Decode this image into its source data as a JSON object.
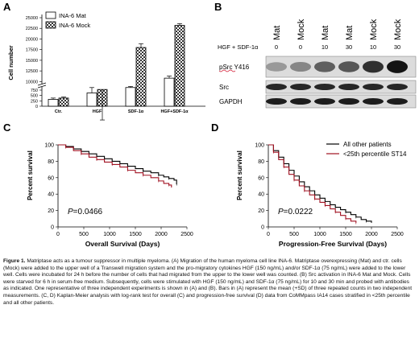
{
  "panels": {
    "A": {
      "letter": "A"
    },
    "B": {
      "letter": "B"
    },
    "C": {
      "letter": "C"
    },
    "D": {
      "letter": "D"
    }
  },
  "chart_data": [
    {
      "id": "A",
      "type": "bar",
      "ylabel": "Cell number",
      "categories": [
        "Ctr.",
        "HGF",
        "SDF-1α",
        "HGF+SDF-1α"
      ],
      "series": [
        {
          "name": "INA-6 Mat",
          "values": [
            320,
            620,
            8600,
            10800
          ],
          "errors": [
            60,
            250,
            250,
            500
          ]
        },
        {
          "name": "INA-6 Mock",
          "values": [
            380,
            780,
            18000,
            23200
          ],
          "errors": [
            50,
            200,
            900,
            400
          ]
        }
      ],
      "y_ticks": [
        "0",
        "250",
        "500",
        "750",
        "10000",
        "12500",
        "15000",
        "17500",
        "20000",
        "22500",
        "25000"
      ],
      "axis_break": [
        900,
        9500
      ],
      "legend_position": "top-left"
    },
    {
      "id": "C",
      "type": "line",
      "xlabel": "Overall Survival (Days)",
      "ylabel": "Percent survival",
      "xlim": [
        0,
        2500
      ],
      "ylim": [
        0,
        100
      ],
      "x_ticks": [
        "0",
        "500",
        "1000",
        "1500",
        "2000",
        "2500"
      ],
      "y_ticks": [
        "0",
        "20",
        "40",
        "60",
        "80",
        "100"
      ],
      "annotation": {
        "p_label": "P",
        "p_value": "=0.0466"
      },
      "series": [
        {
          "name": "All other patients",
          "color": "#000000",
          "x": [
            0,
            150,
            300,
            450,
            600,
            750,
            900,
            1050,
            1200,
            1350,
            1500,
            1650,
            1800,
            1950,
            2050,
            2150,
            2250,
            2300
          ],
          "y": [
            100,
            98,
            95,
            92,
            89,
            86,
            83,
            80,
            77,
            74,
            71,
            68,
            66,
            63,
            61,
            59,
            57,
            52
          ]
        },
        {
          "name": "<25th percentile ST14",
          "color": "#a01020",
          "x": [
            0,
            150,
            300,
            450,
            600,
            750,
            900,
            1050,
            1200,
            1350,
            1500,
            1650,
            1800,
            1950,
            2050,
            2150,
            2200
          ],
          "y": [
            100,
            97,
            93,
            89,
            85,
            82,
            79,
            76,
            73,
            69,
            66,
            63,
            60,
            56,
            53,
            51,
            48
          ]
        }
      ]
    },
    {
      "id": "D",
      "type": "line",
      "xlabel": "Progression-Free Survival (Days)",
      "ylabel": "Percent survival",
      "xlim": [
        0,
        2500
      ],
      "ylim": [
        0,
        100
      ],
      "x_ticks": [
        "0",
        "500",
        "1000",
        "1500",
        "2000",
        "2500"
      ],
      "y_ticks": [
        "0",
        "20",
        "40",
        "60",
        "80",
        "100"
      ],
      "annotation": {
        "p_label": "P",
        "p_value": "=0.0222"
      },
      "legend_position": "top-right",
      "series": [
        {
          "name": "All other patients",
          "color": "#000000",
          "x": [
            0,
            100,
            200,
            300,
            400,
            500,
            600,
            700,
            800,
            900,
            1000,
            1100,
            1200,
            1300,
            1400,
            1500,
            1600,
            1700,
            1800,
            1900,
            2000
          ],
          "y": [
            100,
            93,
            85,
            77,
            69,
            62,
            55,
            49,
            44,
            39,
            35,
            31,
            27,
            24,
            21,
            18,
            15,
            12,
            9,
            7,
            5
          ]
        },
        {
          "name": "<25th percentile ST14",
          "color": "#a01020",
          "x": [
            0,
            100,
            200,
            300,
            400,
            500,
            600,
            700,
            800,
            900,
            1000,
            1100,
            1200,
            1300,
            1400,
            1500,
            1600,
            1700
          ],
          "y": [
            100,
            91,
            82,
            73,
            64,
            57,
            50,
            44,
            39,
            34,
            30,
            26,
            22,
            18,
            14,
            10,
            7,
            5
          ]
        }
      ]
    }
  ],
  "western_blot": {
    "header_label": "HGF + SDF-1α",
    "lanes": [
      {
        "group": "Mat",
        "dose": "0"
      },
      {
        "group": "Mock",
        "dose": "0"
      },
      {
        "group": "Mat",
        "dose": "10"
      },
      {
        "group": "Mat",
        "dose": "30"
      },
      {
        "group": "Mock",
        "dose": "10"
      },
      {
        "group": "Mock",
        "dose": "30"
      }
    ],
    "rows": [
      {
        "label": "pSrc Y416",
        "intensity": [
          0.25,
          0.35,
          0.55,
          0.6,
          0.8,
          0.95
        ]
      },
      {
        "label": "Src",
        "intensity": [
          0.85,
          0.85,
          0.85,
          0.85,
          0.85,
          0.85
        ]
      },
      {
        "label": "GAPDH",
        "intensity": [
          0.9,
          0.9,
          0.9,
          0.9,
          0.9,
          0.9
        ]
      }
    ]
  },
  "caption": {
    "title": "Figure 1.",
    "text": "Matriptase acts as a tumour suppressor in multiple myeloma. (A) Migration of the human myeloma cell line INA-6. Matriptase overexpressing (Mat) and ctr. cells (Mock) were added to the upper well of a Transwell migration system and the pro-migratory cytokines HGF (150 ng/mL) and/or SDF-1α (75 ng/mL) were added to the lower well. Cells were incubated for 24 h before the number of cells that had migrated from the upper to the lower well was counted. (B) Src activation in INA-6 Mat and Mock. Cells were starved for 6 h in serum-free medium. Subsequently, cells were stimulated with HGF (150 ng/mL) and SDF-1α (75 ng/mL) for 10 and 30 min and probed with antibodies as indicated. One representative of three independent experiments is shown in (A) and (B). Bars in (A) represent the mean (+SD) of three repeated counts in two independent measurements. (C, D) Kaplan-Meier analysis with log-rank test for overall (C) and progression-free survival (D) data from CoMMpass IA14 cases stratified in <25th percentile and all other patients."
  }
}
